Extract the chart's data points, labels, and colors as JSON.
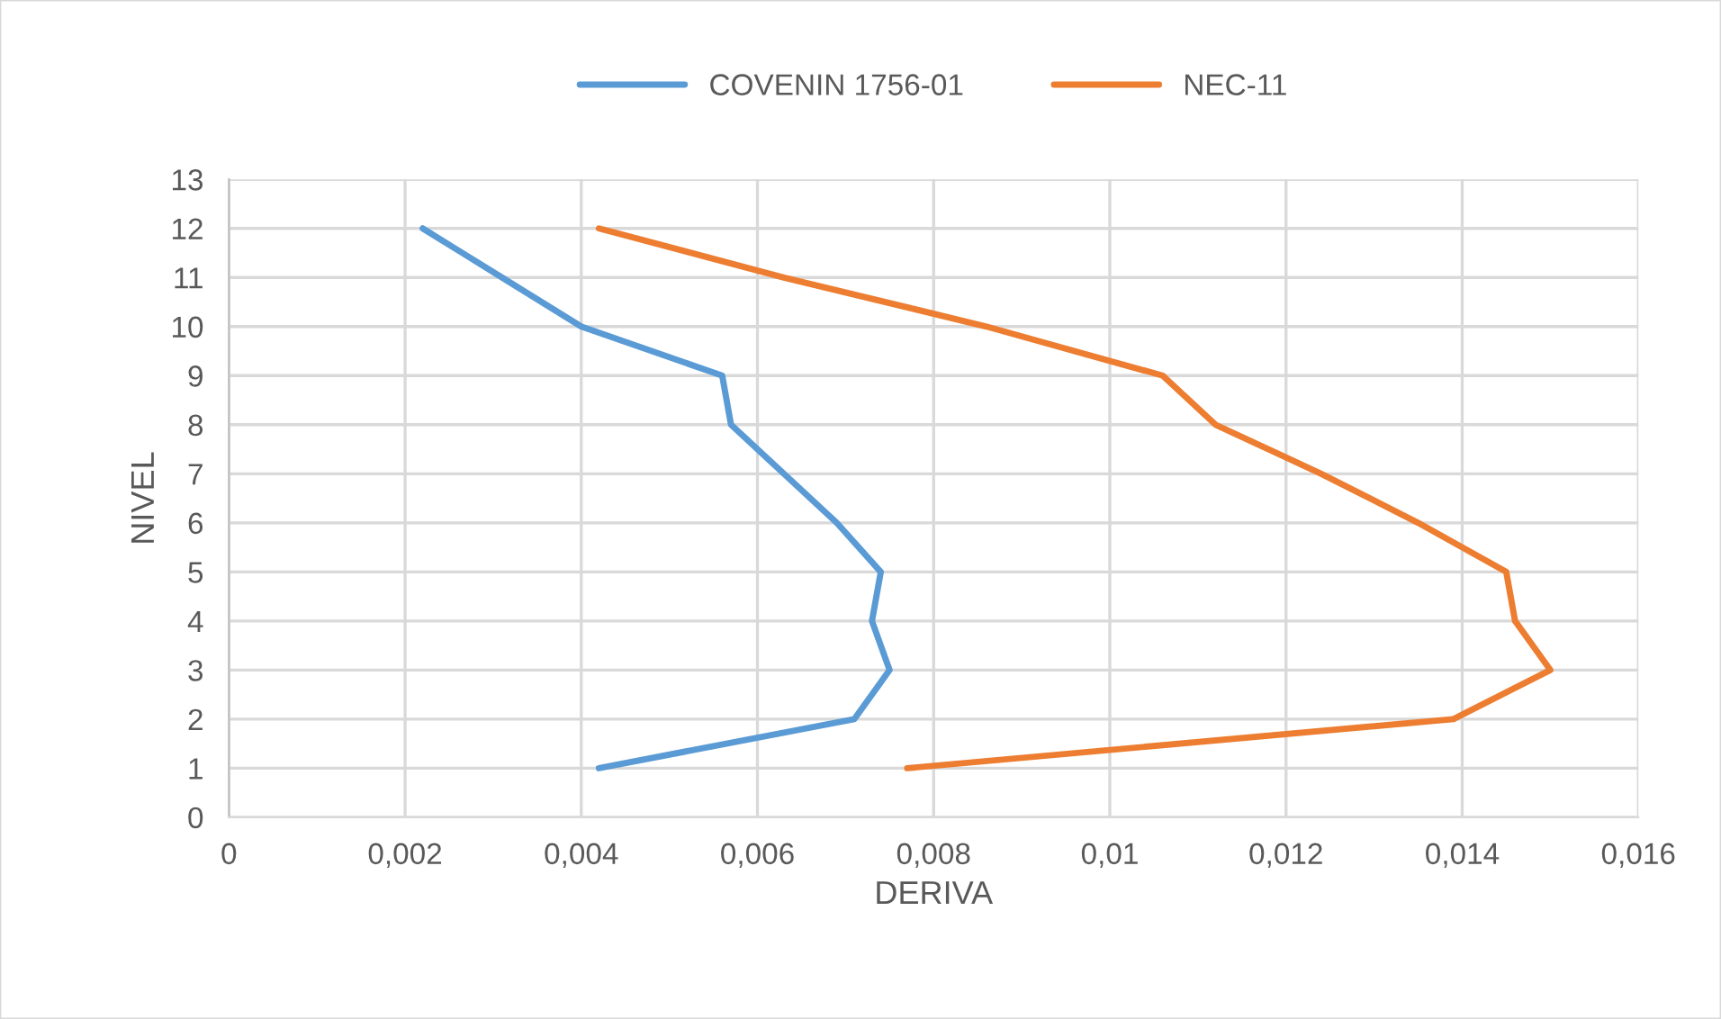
{
  "chart_data": {
    "type": "line",
    "xlabel": "DERIVA",
    "ylabel": "NIVEL",
    "series": [
      {
        "name": "COVENIN 1756-01",
        "color": "#5b9bd5",
        "x": [
          0.0042,
          0.0071,
          0.0075,
          0.0073,
          0.0074,
          0.0069,
          0.0063,
          0.0057,
          0.0056,
          0.004,
          0.0031,
          0.0022
        ],
        "values": [
          1,
          2,
          3,
          4,
          5,
          6,
          7,
          8,
          9,
          10,
          11,
          12
        ]
      },
      {
        "name": "NEC-11",
        "color": "#ed7d31",
        "x": [
          0.0077,
          0.0139,
          0.015,
          0.0146,
          0.0145,
          0.0135,
          0.0124,
          0.0112,
          0.0106,
          0.0086,
          0.0063,
          0.0042
        ],
        "values": [
          1,
          2,
          3,
          4,
          5,
          6,
          7,
          8,
          9,
          10,
          11,
          12
        ]
      }
    ],
    "xlim": [
      0,
      0.016
    ],
    "xticks": [
      0,
      {
        "value": 0.002,
        "label": "0,002"
      },
      {
        "value": 0.004,
        "label": "0,004"
      },
      {
        "value": 0.006,
        "label": "0,006"
      },
      {
        "value": 0.008,
        "label": "0,008"
      },
      {
        "value": 0.01,
        "label": "0,01"
      },
      {
        "value": 0.012,
        "label": "0,012"
      },
      {
        "value": 0.014,
        "label": "0,014"
      },
      {
        "value": 0.016,
        "label": "0,016"
      }
    ],
    "ylim": [
      0,
      13
    ],
    "yticks": [
      0,
      1,
      2,
      3,
      4,
      5,
      6,
      7,
      8,
      9,
      10,
      11,
      12,
      13
    ],
    "grid": true,
    "legend": "top",
    "marker": "none",
    "line_style": "solid"
  }
}
